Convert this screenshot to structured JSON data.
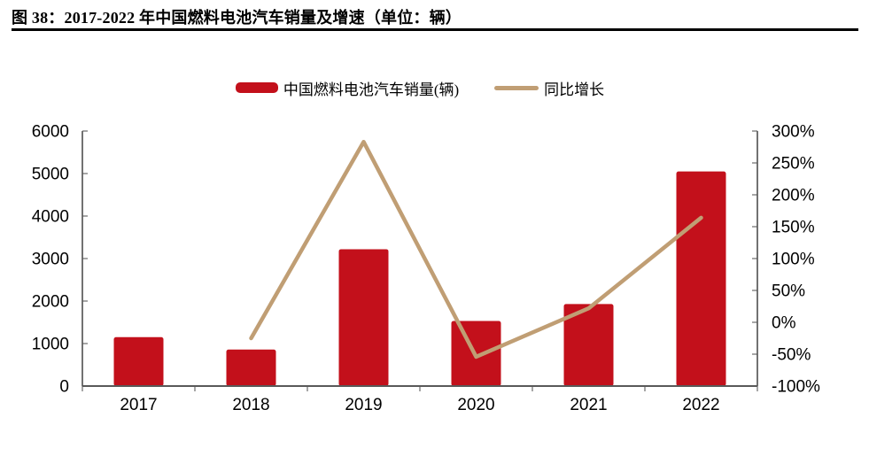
{
  "header": {
    "figure_label_title": "图 38：2017-2022 年中国燃料电池汽车销量及增速（单位：辆）"
  },
  "chart_data": {
    "type": "bar+line",
    "title": "2017-2022 年中国燃料电池汽车销量及增速（单位：辆）",
    "categories": [
      "2017",
      "2018",
      "2019",
      "2020",
      "2021",
      "2022"
    ],
    "series": [
      {
        "name": "中国燃料电池汽车销量(辆)",
        "type": "bar",
        "axis": "left",
        "color": "#c3101b",
        "values": [
          1150,
          860,
          3220,
          1530,
          1930,
          5050
        ]
      },
      {
        "name": "同比增长",
        "type": "line",
        "axis": "right",
        "unit": "%",
        "color": "#c09e74",
        "values": [
          null,
          -25,
          283,
          -54,
          22,
          164
        ]
      }
    ],
    "y_left": {
      "min": 0,
      "max": 6000,
      "step": 1000,
      "tick_labels": [
        "0",
        "1000",
        "2000",
        "3000",
        "4000",
        "5000",
        "6000"
      ]
    },
    "y_right": {
      "min": -100,
      "max": 300,
      "step": 50,
      "tick_labels": [
        "-100%",
        "-50%",
        "0%",
        "50%",
        "100%",
        "150%",
        "200%",
        "250%",
        "300%"
      ]
    },
    "grid": false,
    "legend_position": "top-center",
    "axis_color": "#595959",
    "tick_color": "#808080",
    "text_color": "#000000"
  }
}
